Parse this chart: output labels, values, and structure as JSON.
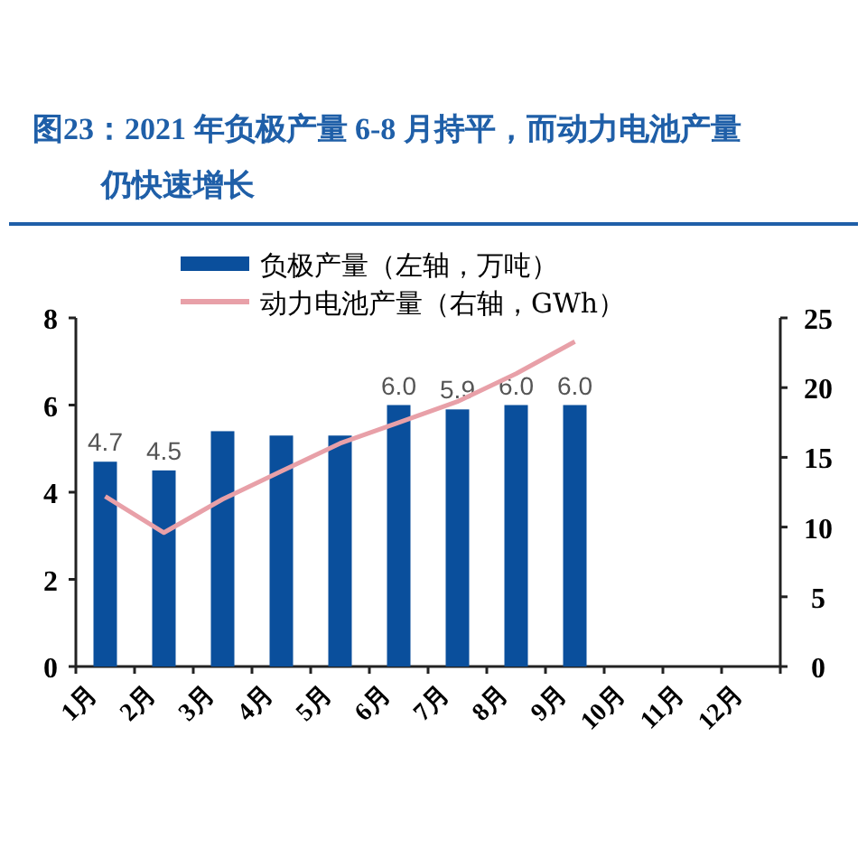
{
  "chart_data": {
    "type": "bar",
    "title": "图23：2021 年负极产量 6-8 月持平，而动力电池产量仍快速增长",
    "categories": [
      "1月",
      "2月",
      "3月",
      "4月",
      "5月",
      "6月",
      "7月",
      "8月",
      "9月",
      "10月",
      "11月",
      "12月"
    ],
    "series": [
      {
        "name": "负极产量（左轴，万吨）",
        "color": "#0a4f9c",
        "values": [
          4.7,
          4.5,
          5.4,
          5.3,
          5.3,
          6.0,
          5.9,
          6.0,
          6.0,
          null,
          null,
          null
        ],
        "value_labels": [
          "4.7",
          "4.5",
          null,
          null,
          null,
          "6.0",
          "5.9",
          "6.0",
          "6.0",
          null,
          null,
          null
        ]
      },
      {
        "name": "动力电池产量（右轴，GWh）",
        "type": "line",
        "axis": "y2",
        "color": "#e8a0a8",
        "values": [
          12.2,
          9.6,
          12,
          14,
          16,
          17.5,
          19,
          21,
          23.3,
          null,
          null,
          null
        ]
      }
    ],
    "ylim": [
      0,
      8
    ],
    "yticks": [
      0,
      2,
      4,
      6,
      8
    ],
    "y2lim": [
      0,
      25
    ],
    "y2ticks": [
      0,
      5,
      10,
      15,
      20,
      25
    ],
    "legend": "top",
    "grid": false
  }
}
